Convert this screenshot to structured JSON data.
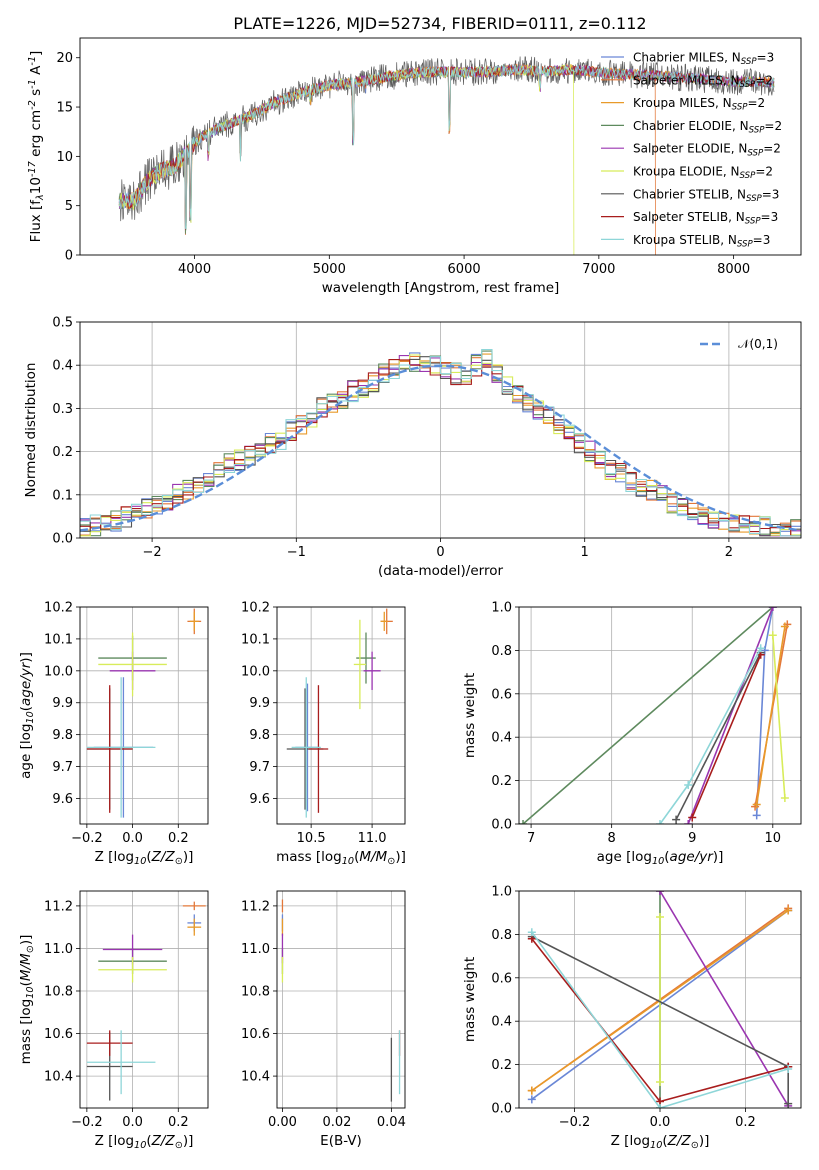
{
  "figure_title": "PLATE=1226, MJD=52734, FIBERID=0111, z=0.112",
  "colors": {
    "Chabrier MILES": "#6a87d6",
    "Salpeter MILES": "#e3783a",
    "Kroupa MILES": "#e89a2a",
    "Chabrier ELODIE": "#5e8a5e",
    "Salpeter ELODIE": "#9a35b0",
    "Kroupa ELODIE": "#d8ec5a",
    "Chabrier STELIB": "#555555",
    "Salpeter STELIB": "#a81d1d",
    "Kroupa STELIB": "#8ed6d8",
    "Normal": "#5b8ed8"
  },
  "chart_data": [
    {
      "id": "spectrum",
      "type": "line",
      "xlabel": "wavelength [Angstrom, rest frame]",
      "ylabel": "Flux [f$_\\lambda$10$^{-17}$ erg cm$^{-2}$ s$^{-1}$ A$^{-1}$]",
      "xlim": [
        3150,
        8500
      ],
      "ylim": [
        0,
        22
      ],
      "xticks": [
        4000,
        5000,
        6000,
        7000,
        8000
      ],
      "yticks": [
        0,
        5,
        10,
        15,
        20
      ],
      "legend_position": "right",
      "legend": [
        {
          "name": "Chabrier MILES",
          "nssp": "3"
        },
        {
          "name": "Salpeter MILES",
          "nssp": "2"
        },
        {
          "name": "Kroupa MILES",
          "nssp": "2"
        },
        {
          "name": "Chabrier ELODIE",
          "nssp": "2"
        },
        {
          "name": "Salpeter ELODIE",
          "nssp": "2"
        },
        {
          "name": "Kroupa ELODIE",
          "nssp": "2"
        },
        {
          "name": "Chabrier STELIB",
          "nssp": "3"
        },
        {
          "name": "Salpeter STELIB",
          "nssp": "3"
        },
        {
          "name": "Kroupa STELIB",
          "nssp": "3"
        }
      ],
      "continuum": [
        [
          3440,
          5.5
        ],
        [
          3550,
          5.5
        ],
        [
          3650,
          7.5
        ],
        [
          3750,
          8.5
        ],
        [
          3850,
          9.0
        ],
        [
          3950,
          10.5
        ],
        [
          4050,
          12.0
        ],
        [
          4200,
          13.0
        ],
        [
          4400,
          14.0
        ],
        [
          4600,
          15.5
        ],
        [
          4800,
          16.5
        ],
        [
          5000,
          17.2
        ],
        [
          5200,
          17.5
        ],
        [
          5400,
          18.0
        ],
        [
          5600,
          18.4
        ],
        [
          5800,
          18.6
        ],
        [
          6000,
          18.5
        ],
        [
          6200,
          18.6
        ],
        [
          6400,
          18.8
        ],
        [
          6600,
          18.6
        ],
        [
          6800,
          18.8
        ],
        [
          7000,
          18.5
        ],
        [
          7200,
          18.3
        ],
        [
          7400,
          18.2
        ],
        [
          7600,
          18.0
        ],
        [
          7800,
          17.8
        ],
        [
          8000,
          17.6
        ],
        [
          8300,
          17.5
        ]
      ],
      "features": [
        {
          "x": 3934,
          "y": 2.0
        },
        {
          "x": 3969,
          "y": 3.0
        },
        {
          "x": 4102,
          "y": 9.5
        },
        {
          "x": 4340,
          "y": 9.0
        },
        {
          "x": 4861,
          "y": 15.0
        },
        {
          "x": 5175,
          "y": 11.0
        },
        {
          "x": 5270,
          "y": 16.0
        },
        {
          "x": 5893,
          "y": 12.0
        },
        {
          "x": 6563,
          "y": 16.5
        },
        {
          "x": 6815,
          "y": 0.0
        },
        {
          "x": 7420,
          "y": 0.0
        }
      ]
    },
    {
      "id": "residuals",
      "type": "line",
      "xlabel": "(data-model)/error",
      "ylabel": "Normed distribution",
      "xlim": [
        -2.5,
        2.5
      ],
      "ylim": [
        0,
        0.5
      ],
      "xticks": [
        -2,
        -1,
        0,
        1,
        2
      ],
      "yticks": [
        0,
        0.1,
        0.2,
        0.3,
        0.4,
        0.5
      ],
      "grid": true,
      "legend_position": "top-right",
      "bin_width": 0.1,
      "normal_label": "$\\mathcal{N}(0,1)$",
      "series_order": [
        "Chabrier MILES",
        "Salpeter MILES",
        "Kroupa MILES",
        "Chabrier ELODIE",
        "Salpeter ELODIE",
        "Kroupa ELODIE",
        "Chabrier STELIB",
        "Salpeter STELIB",
        "Kroupa STELIB"
      ],
      "base_hist": [
        0.025,
        0.03,
        0.035,
        0.04,
        0.05,
        0.06,
        0.07,
        0.075,
        0.09,
        0.1,
        0.11,
        0.12,
        0.14,
        0.16,
        0.17,
        0.18,
        0.19,
        0.21,
        0.22,
        0.23,
        0.25,
        0.26,
        0.28,
        0.3,
        0.31,
        0.32,
        0.34,
        0.35,
        0.36,
        0.38,
        0.39,
        0.4,
        0.41,
        0.41,
        0.4,
        0.39,
        0.38,
        0.37,
        0.4,
        0.42,
        0.38,
        0.35,
        0.33,
        0.31,
        0.3,
        0.28,
        0.26,
        0.24,
        0.22,
        0.2,
        0.18,
        0.16,
        0.15,
        0.13,
        0.12,
        0.11,
        0.1,
        0.08,
        0.07,
        0.06,
        0.05,
        0.045,
        0.04,
        0.035,
        0.03,
        0.028,
        0.025,
        0.022,
        0.02,
        0.02
      ]
    },
    {
      "id": "age-vs-Z",
      "type": "scatter",
      "xlabel": "Z [log$_{10}$($Z/Z_\\odot$)]",
      "ylabel": "age  [log$_{10}$($age/yr$)]",
      "xlim": [
        -0.23,
        0.33
      ],
      "ylim": [
        9.52,
        10.2
      ],
      "xticks": [
        -0.2,
        0.0,
        0.2
      ],
      "yticks": [
        9.6,
        9.7,
        9.8,
        9.9,
        10.0,
        10.1,
        10.2
      ],
      "grid": true,
      "points": [
        {
          "series": "Chabrier MILES",
          "x": -0.04,
          "y": 9.76,
          "xerr": 0.13,
          "yerr": 0.22
        },
        {
          "series": "Salpeter MILES",
          "x": 0.27,
          "y": 10.155,
          "xerr": 0.03,
          "yerr": 0.04
        },
        {
          "series": "Kroupa MILES",
          "x": 0.27,
          "y": 10.155,
          "xerr": 0.02,
          "yerr": 0.03
        },
        {
          "series": "Chabrier ELODIE",
          "x": 0.0,
          "y": 10.04,
          "xerr": 0.15,
          "yerr": 0.07
        },
        {
          "series": "Salpeter ELODIE",
          "x": 0.0,
          "y": 10.0,
          "xerr": 0.1,
          "yerr": 0.06
        },
        {
          "series": "Kroupa ELODIE",
          "x": 0.0,
          "y": 10.02,
          "xerr": 0.15,
          "yerr": 0.1
        },
        {
          "series": "Chabrier STELIB",
          "x": -0.1,
          "y": 9.755,
          "xerr": 0.1,
          "yerr": 0.19
        },
        {
          "series": "Salpeter STELIB",
          "x": -0.1,
          "y": 9.755,
          "xerr": 0.1,
          "yerr": 0.2
        },
        {
          "series": "Kroupa STELIB",
          "x": -0.05,
          "y": 9.76,
          "xerr": 0.15,
          "yerr": 0.22
        }
      ]
    },
    {
      "id": "age-vs-mass",
      "type": "scatter",
      "xlabel": "mass [log$_{10}$($M/M_\\odot$)]",
      "xlim": [
        10.22,
        11.27
      ],
      "ylim": [
        9.52,
        10.2
      ],
      "xticks": [
        10.5,
        11.0
      ],
      "yticks": [
        9.6,
        9.7,
        9.8,
        9.9,
        10.0,
        10.1,
        10.2
      ],
      "grid": true,
      "points": [
        {
          "series": "Chabrier MILES",
          "x": 10.47,
          "y": 9.76,
          "xerr": 0.1,
          "yerr": 0.2
        },
        {
          "series": "Salpeter MILES",
          "x": 11.12,
          "y": 10.155,
          "xerr": 0.05,
          "yerr": 0.04
        },
        {
          "series": "Kroupa MILES",
          "x": 11.1,
          "y": 10.155,
          "xerr": 0.03,
          "yerr": 0.03
        },
        {
          "series": "Chabrier ELODIE",
          "x": 10.95,
          "y": 10.04,
          "xerr": 0.08,
          "yerr": 0.08
        },
        {
          "series": "Salpeter ELODIE",
          "x": 11.0,
          "y": 10.0,
          "xerr": 0.07,
          "yerr": 0.06
        },
        {
          "series": "Kroupa ELODIE",
          "x": 10.9,
          "y": 10.02,
          "xerr": 0.05,
          "yerr": 0.14
        },
        {
          "series": "Chabrier STELIB",
          "x": 10.45,
          "y": 9.755,
          "xerr": 0.15,
          "yerr": 0.19
        },
        {
          "series": "Salpeter STELIB",
          "x": 10.56,
          "y": 9.755,
          "xerr": 0.08,
          "yerr": 0.2
        },
        {
          "series": "Kroupa STELIB",
          "x": 10.46,
          "y": 9.76,
          "xerr": 0.12,
          "yerr": 0.22
        }
      ]
    },
    {
      "id": "weight-vs-age",
      "type": "line",
      "xlabel": "age  [log$_{10}$($age/yr$)]",
      "ylabel": "mass weight",
      "xlim": [
        6.85,
        10.35
      ],
      "ylim": [
        0,
        1
      ],
      "xticks": [
        7,
        8,
        9,
        10
      ],
      "yticks": [
        0,
        0.2,
        0.4,
        0.6,
        0.8,
        1.0
      ],
      "grid": true,
      "series": [
        {
          "name": "Chabrier MILES",
          "x": [
            9.8,
            9.9,
            10.0
          ],
          "y": [
            0.04,
            0.8,
            1.0
          ]
        },
        {
          "name": "Salpeter MILES",
          "x": [
            9.78,
            10.18
          ],
          "y": [
            0.08,
            0.92
          ]
        },
        {
          "name": "Kroupa MILES",
          "x": [
            9.8,
            10.15
          ],
          "y": [
            0.09,
            0.91
          ]
        },
        {
          "name": "Chabrier ELODIE",
          "x": [
            6.9,
            10.0
          ],
          "y": [
            0.0,
            1.0
          ]
        },
        {
          "name": "Salpeter ELODIE",
          "x": [
            8.95,
            10.0
          ],
          "y": [
            0.0,
            1.0
          ]
        },
        {
          "name": "Kroupa ELODIE",
          "x": [
            10.0,
            10.15
          ],
          "y": [
            0.87,
            0.12
          ]
        },
        {
          "name": "Chabrier STELIB",
          "x": [
            8.8,
            9.85
          ],
          "y": [
            0.02,
            0.79
          ]
        },
        {
          "name": "Salpeter STELIB",
          "x": [
            9.0,
            9.85
          ],
          "y": [
            0.03,
            0.78
          ]
        },
        {
          "name": "Kroupa STELIB",
          "x": [
            8.6,
            8.95,
            9.85
          ],
          "y": [
            0.0,
            0.18,
            0.81
          ]
        }
      ]
    },
    {
      "id": "mass-vs-Z",
      "type": "scatter",
      "xlabel": "Z [log$_{10}$($Z/Z_\\odot$)]",
      "ylabel": "mass [log$_{10}$($M/M_\\odot$)]",
      "xlim": [
        -0.23,
        0.33
      ],
      "ylim": [
        10.25,
        11.27
      ],
      "xticks": [
        -0.2,
        0.0,
        0.2
      ],
      "yticks": [
        10.4,
        10.6,
        10.8,
        11.0,
        11.2
      ],
      "grid": true,
      "points": [
        {
          "series": "Chabrier MILES",
          "x": 0.27,
          "y": 11.12,
          "xerr": 0.03,
          "yerr": 0.04
        },
        {
          "series": "Salpeter MILES",
          "x": 0.27,
          "y": 11.2,
          "xerr": 0.05,
          "yerr": 0.02
        },
        {
          "series": "Kroupa MILES",
          "x": 0.27,
          "y": 11.1,
          "xerr": 0.03,
          "yerr": 0.04
        },
        {
          "series": "Chabrier ELODIE",
          "x": 0.0,
          "y": 10.94,
          "xerr": 0.15,
          "yerr": 0.06
        },
        {
          "series": "Salpeter ELODIE",
          "x": 0.0,
          "y": 10.995,
          "xerr": 0.13,
          "yerr": 0.07
        },
        {
          "series": "Kroupa ELODIE",
          "x": 0.0,
          "y": 10.9,
          "xerr": 0.15,
          "yerr": 0.06
        },
        {
          "series": "Chabrier STELIB",
          "x": -0.1,
          "y": 10.445,
          "xerr": 0.1,
          "yerr": 0.16
        },
        {
          "series": "Salpeter STELIB",
          "x": -0.1,
          "y": 10.555,
          "xerr": 0.1,
          "yerr": 0.06
        },
        {
          "series": "Kroupa STELIB",
          "x": -0.05,
          "y": 10.465,
          "xerr": 0.15,
          "yerr": 0.15
        }
      ]
    },
    {
      "id": "mass-vs-ebv",
      "type": "scatter",
      "xlabel": "E(B-V)",
      "xlim": [
        -0.002,
        0.045
      ],
      "ylim": [
        10.25,
        11.27
      ],
      "xticks": [
        0.0,
        0.02,
        0.04
      ],
      "yticks": [
        10.4,
        10.6,
        10.8,
        11.0,
        11.2
      ],
      "grid": true,
      "points": [
        {
          "series": "Chabrier MILES",
          "x": 0.0,
          "y": 11.12,
          "xerr": 0.0,
          "yerr": 0.04
        },
        {
          "series": "Salpeter MILES",
          "x": 0.0,
          "y": 11.2,
          "xerr": 0.0,
          "yerr": 0.03
        },
        {
          "series": "Kroupa MILES",
          "x": 0.0,
          "y": 11.1,
          "xerr": 0.0,
          "yerr": 0.04
        },
        {
          "series": "Chabrier ELODIE",
          "x": 0.0,
          "y": 10.94,
          "xerr": 0.0,
          "yerr": 0.06
        },
        {
          "series": "Salpeter ELODIE",
          "x": 0.0,
          "y": 11.0,
          "xerr": 0.0,
          "yerr": 0.07
        },
        {
          "series": "Kroupa ELODIE",
          "x": 0.0,
          "y": 10.9,
          "xerr": 0.0,
          "yerr": 0.06
        },
        {
          "series": "Chabrier STELIB",
          "x": 0.04,
          "y": 10.43,
          "xerr": 0.0,
          "yerr": 0.15
        },
        {
          "series": "Salpeter STELIB",
          "x": 0.043,
          "y": 10.555,
          "xerr": 0.0,
          "yerr": 0.06
        },
        {
          "series": "Kroupa STELIB",
          "x": 0.043,
          "y": 10.465,
          "xerr": 0.0,
          "yerr": 0.15
        }
      ]
    },
    {
      "id": "weight-vs-Z",
      "type": "line",
      "xlabel": "Z [log$_{10}$($Z/Z_\\odot$)]",
      "ylabel": "mass weight",
      "xlim": [
        -0.33,
        0.33
      ],
      "ylim": [
        0,
        1
      ],
      "xticks": [
        -0.2,
        0.0,
        0.2
      ],
      "yticks": [
        0,
        0.2,
        0.4,
        0.6,
        0.8,
        1.0
      ],
      "grid": true,
      "series": [
        {
          "name": "Chabrier MILES",
          "x": [
            -0.3,
            0.3
          ],
          "y": [
            0.04,
            0.91
          ]
        },
        {
          "name": "Salpeter MILES",
          "x": [
            -0.3,
            0.3
          ],
          "y": [
            0.08,
            0.92
          ]
        },
        {
          "name": "Kroupa MILES",
          "x": [
            -0.3,
            0.3
          ],
          "y": [
            0.08,
            0.91
          ]
        },
        {
          "name": "Chabrier ELODIE",
          "x": [
            0.0,
            0.0
          ],
          "y": [
            0.0,
            1.0
          ]
        },
        {
          "name": "Salpeter ELODIE",
          "x": [
            0.0,
            0.3
          ],
          "y": [
            1.0,
            0.01
          ]
        },
        {
          "name": "Kroupa ELODIE",
          "x": [
            0.0,
            0.0
          ],
          "y": [
            0.12,
            0.88
          ]
        },
        {
          "name": "Chabrier STELIB",
          "x": [
            -0.3,
            0.3,
            0.3
          ],
          "y": [
            0.79,
            0.19,
            0.02
          ]
        },
        {
          "name": "Salpeter STELIB",
          "x": [
            -0.3,
            0.0,
            0.3
          ],
          "y": [
            0.78,
            0.03,
            0.19
          ]
        },
        {
          "name": "Kroupa STELIB",
          "x": [
            -0.3,
            0.0,
            0.3
          ],
          "y": [
            0.81,
            0.0,
            0.18
          ]
        }
      ]
    }
  ]
}
